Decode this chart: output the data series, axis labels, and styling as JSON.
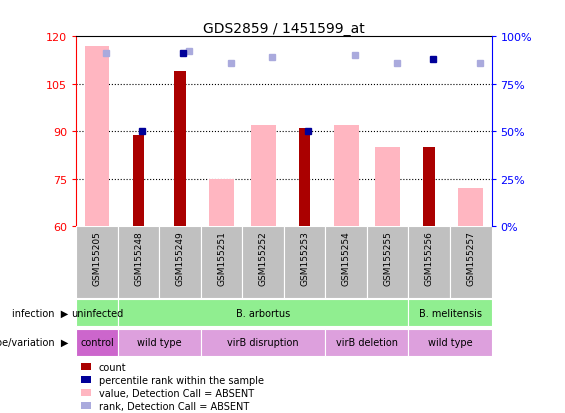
{
  "title": "GDS2859 / 1451599_at",
  "samples": [
    "GSM155205",
    "GSM155248",
    "GSM155249",
    "GSM155251",
    "GSM155252",
    "GSM155253",
    "GSM155254",
    "GSM155255",
    "GSM155256",
    "GSM155257"
  ],
  "ylim_left": [
    60,
    120
  ],
  "ylim_right": [
    0,
    100
  ],
  "yticks_left": [
    60,
    75,
    90,
    105,
    120
  ],
  "yticks_right": [
    0,
    25,
    50,
    75,
    100
  ],
  "ytick_labels_right": [
    "0%",
    "25%",
    "50%",
    "75%",
    "100%"
  ],
  "bar_value": [
    null,
    89,
    109,
    null,
    null,
    91,
    null,
    null,
    85,
    null
  ],
  "bar_rank": [
    null,
    50,
    91,
    null,
    null,
    50,
    null,
    null,
    88,
    null
  ],
  "absent_value": [
    117,
    null,
    null,
    75,
    92,
    null,
    92,
    85,
    null,
    72
  ],
  "absent_rank": [
    91,
    null,
    92,
    86,
    89,
    null,
    90,
    86,
    null,
    86
  ],
  "infection_groups": [
    {
      "label": "uninfected",
      "start": 0,
      "end": 1,
      "color": "#90EE90"
    },
    {
      "label": "B. arbortus",
      "start": 1,
      "end": 8,
      "color": "#90EE90"
    },
    {
      "label": "B. melitensis",
      "start": 8,
      "end": 10,
      "color": "#90EE90"
    }
  ],
  "genotype_groups": [
    {
      "label": "control",
      "start": 0,
      "end": 1,
      "color": "#CC66CC"
    },
    {
      "label": "wild type",
      "start": 1,
      "end": 3,
      "color": "#DDA0DD"
    },
    {
      "label": "virB disruption",
      "start": 3,
      "end": 6,
      "color": "#DDA0DD"
    },
    {
      "label": "virB deletion",
      "start": 6,
      "end": 8,
      "color": "#DDA0DD"
    },
    {
      "label": "wild type",
      "start": 8,
      "end": 10,
      "color": "#DDA0DD"
    }
  ],
  "bar_color_dark_red": "#AA0000",
  "bar_color_pink": "#FFB6C1",
  "bar_color_dark_blue": "#000099",
  "bar_color_light_blue": "#AAAADD",
  "bg_color": "#FFFFFF",
  "n_samples": 10
}
